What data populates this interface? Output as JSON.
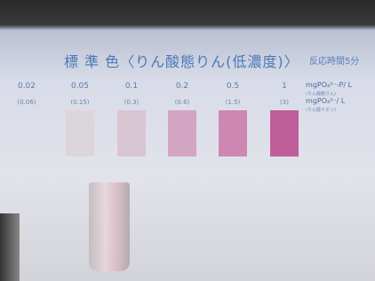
{
  "card": {
    "title": "標 準 色〈りん酸態りん(低濃度)〉",
    "reaction_time": "反応時間5分",
    "columns": [
      {
        "p": "0.02",
        "ion": "(0.06)"
      },
      {
        "p": "0.05",
        "ion": "(0.15)",
        "color": "#ddd5dc"
      },
      {
        "p": "0.1",
        "ion": "(0.3)",
        "color": "#d9c6d3"
      },
      {
        "p": "0.2",
        "ion": "(0.6)",
        "color": "#d2a6c2"
      },
      {
        "p": "0.5",
        "ion": "(1.5)",
        "color": "#cc88b2"
      },
      {
        "p": "1",
        "ion": "(3)",
        "color": "#bf5e9b"
      }
    ],
    "unit_p": "mgPO₄³⁻-P/ L",
    "unit_p_note": "(りん酸態りん)",
    "unit_ion": "mgPO₄³⁻/ L",
    "unit_ion_note": "(りん酸イオン)"
  }
}
